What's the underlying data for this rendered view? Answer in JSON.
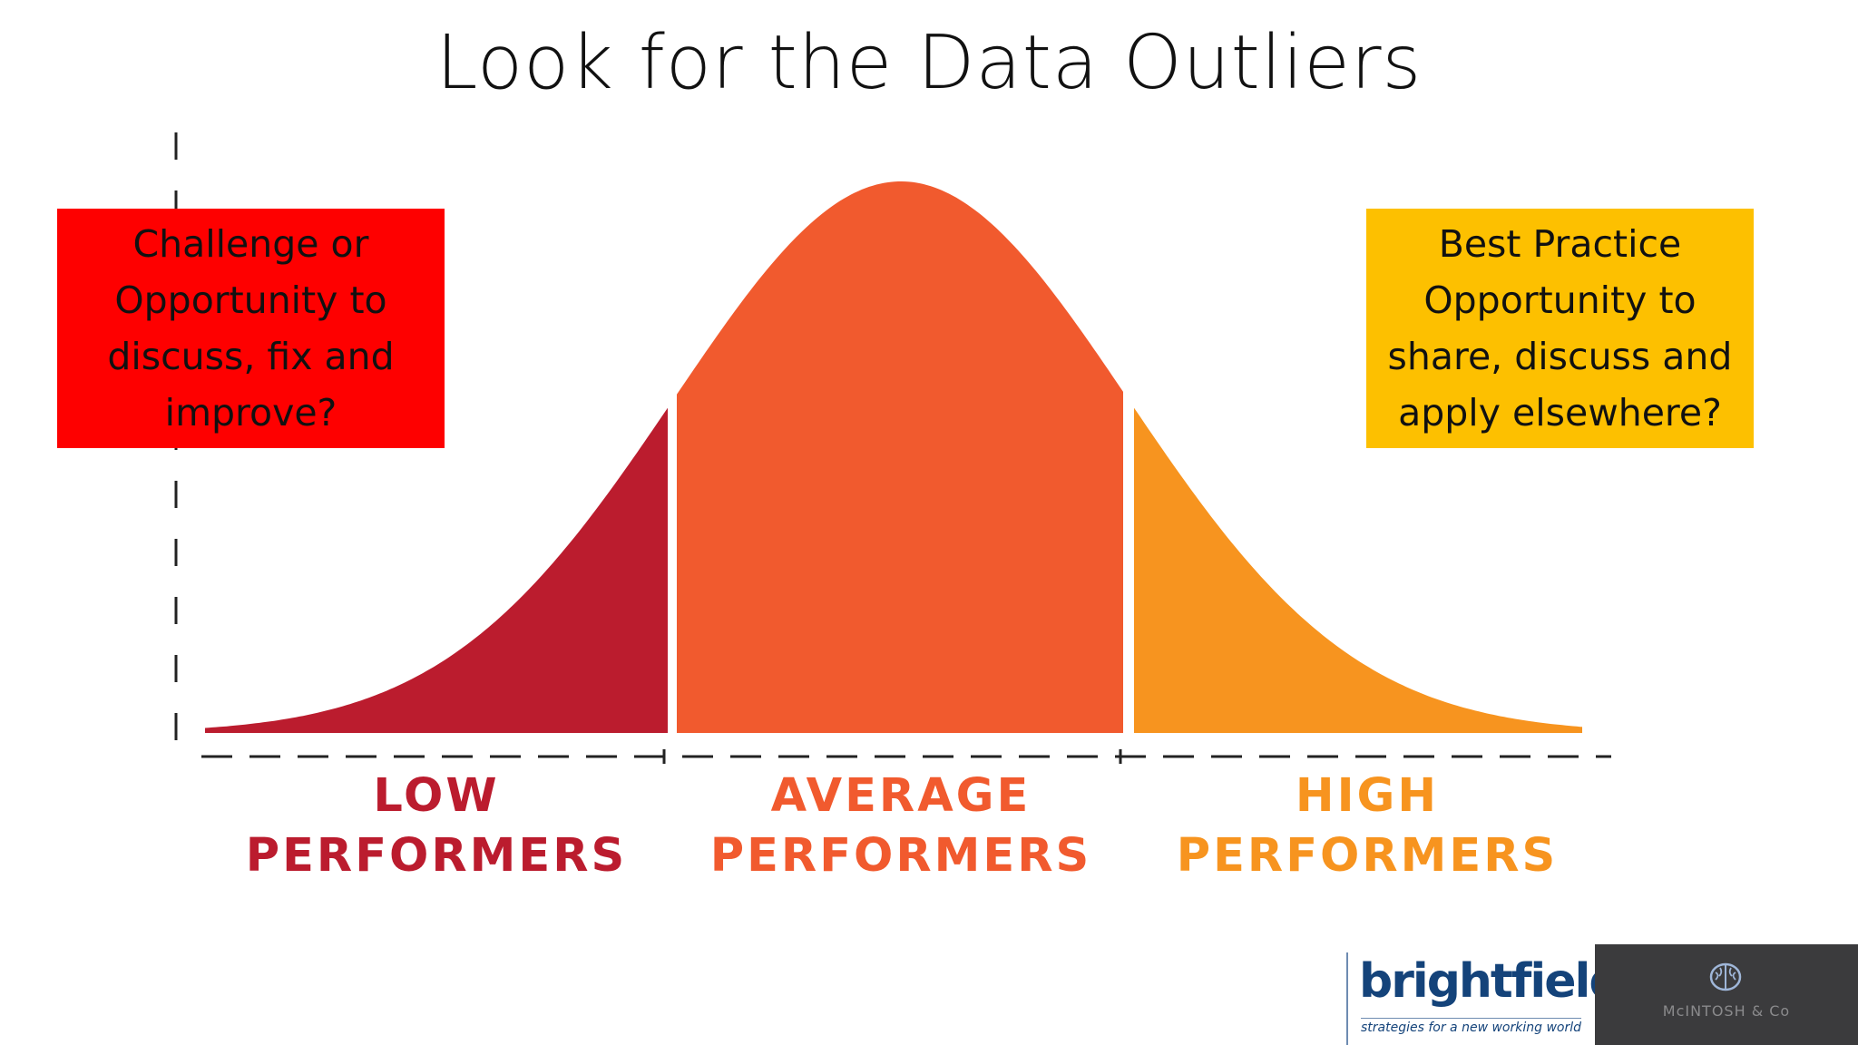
{
  "title": "Look for the Data Outliers",
  "callouts": {
    "left": "Challenge or Opportunity to discuss, fix and improve?",
    "right": "Best Practice Opportunity to share, discuss and apply elsewhere?"
  },
  "segments": [
    {
      "line1": "LOW",
      "line2": "PERFORMERS",
      "color": "#bb1c2e"
    },
    {
      "line1": "AVERAGE",
      "line2": "PERFORMERS",
      "color": "#f15a2e"
    },
    {
      "line1": "HIGH",
      "line2": "PERFORMERS",
      "color": "#f7941f"
    }
  ],
  "colors": {
    "callout_left": "#fe0000",
    "callout_right": "#fdc000",
    "axis": "#222222"
  },
  "logos": {
    "brightfield_name": "brightfield",
    "brightfield_tagline": "strategies for a new working world",
    "mcintosh_name": "McINTOSH & Co",
    "mcintosh_icon": "brain-icon"
  }
}
